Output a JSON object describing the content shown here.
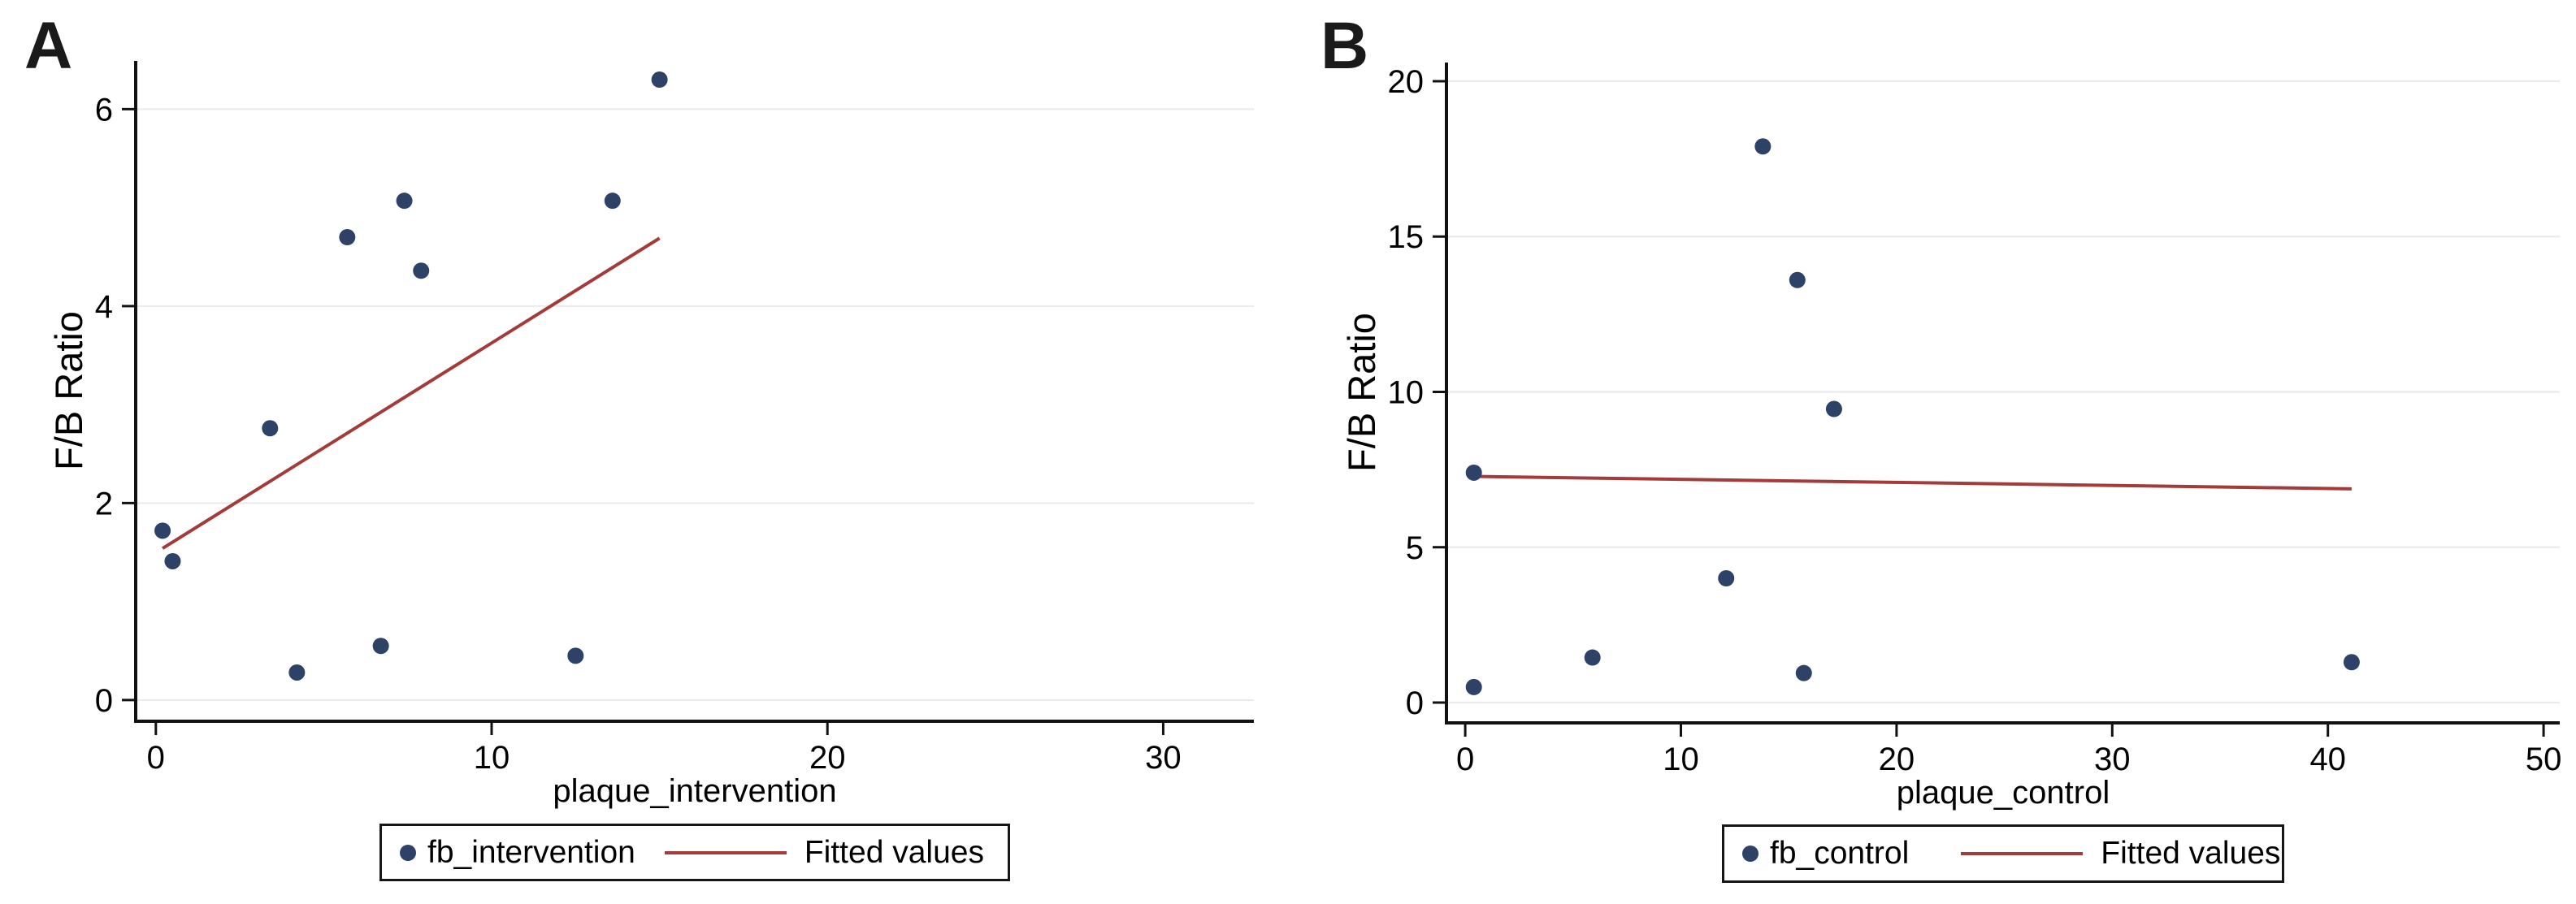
{
  "figure": {
    "background": "#ffffff"
  },
  "colors": {
    "marker": "#2e4167",
    "fit_line": "#a43b3b",
    "grid": "#e9ebee",
    "axis": "#111111",
    "text": "#000000"
  },
  "chart_data": [
    {
      "type": "scatter",
      "letter": "A",
      "ylabel": "F/B Ratio",
      "xlabel": "plaque_intervention",
      "x_ticks": [
        0,
        10,
        20,
        30
      ],
      "y_ticks": [
        0,
        2,
        4,
        6
      ],
      "xlim": [
        -0.6,
        32.7
      ],
      "ylim": [
        -0.215,
        6.49
      ],
      "grid": "horizontal",
      "legend_position": "bottom-center",
      "series": [
        {
          "name": "fb_intervention",
          "type": "scatter",
          "points": [
            [
              0.2,
              1.72
            ],
            [
              0.5,
              1.41
            ],
            [
              3.4,
              2.76
            ],
            [
              4.2,
              0.28
            ],
            [
              5.7,
              4.7
            ],
            [
              6.7,
              0.55
            ],
            [
              7.4,
              5.07
            ],
            [
              7.9,
              4.36
            ],
            [
              12.5,
              0.45
            ],
            [
              13.6,
              5.07
            ],
            [
              15.0,
              6.3
            ]
          ]
        },
        {
          "name": "Fitted values",
          "type": "line",
          "x1": 0.2,
          "y1": 1.54,
          "x2": 15.0,
          "y2": 4.69
        }
      ]
    },
    {
      "type": "scatter",
      "letter": "B",
      "ylabel": "F/B Ratio",
      "xlabel": "plaque_control",
      "x_ticks": [
        0,
        10,
        20,
        30,
        40,
        50
      ],
      "y_ticks": [
        0,
        5,
        10,
        15,
        20
      ],
      "xlim": [
        -0.87,
        50.75
      ],
      "ylim": [
        -0.653,
        20.6
      ],
      "grid": "horizontal",
      "legend_position": "bottom-center",
      "series": [
        {
          "name": "fb_control",
          "type": "scatter",
          "points": [
            [
              0.4,
              0.5
            ],
            [
              0.4,
              7.4
            ],
            [
              5.9,
              1.45
            ],
            [
              12.1,
              4.0
            ],
            [
              13.8,
              17.9
            ],
            [
              15.4,
              13.6
            ],
            [
              15.7,
              0.95
            ],
            [
              17.1,
              9.45
            ],
            [
              41.1,
              1.3
            ]
          ]
        },
        {
          "name": "Fitted values",
          "type": "line",
          "x1": 0.34,
          "y1": 7.28,
          "x2": 41.1,
          "y2": 6.88
        }
      ]
    }
  ]
}
